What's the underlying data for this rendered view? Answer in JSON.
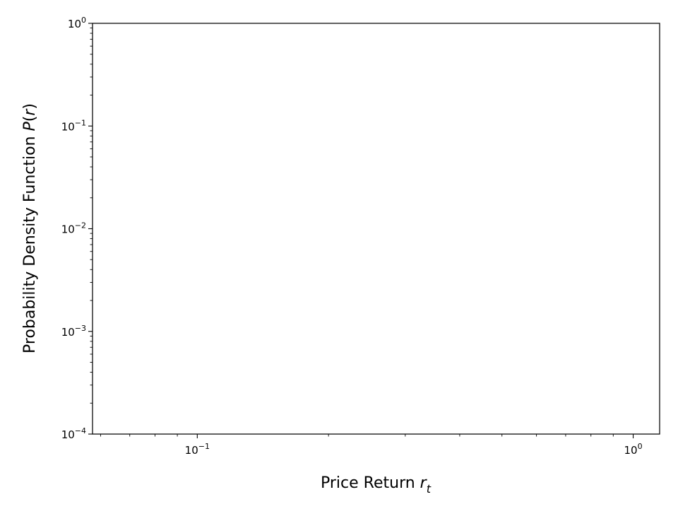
{
  "chart_data": {
    "type": "line",
    "title": "",
    "xscale": "log",
    "yscale": "log",
    "xlim": [
      0.0575,
      1.15
    ],
    "ylim": [
      0.0001,
      1
    ],
    "grid": false,
    "xlabel": {
      "text": "Price Return ",
      "var": "r",
      "sub": "t"
    },
    "ylabel": {
      "text": "Probability Density Function ",
      "var": "P",
      "open": "(",
      "arg": "r",
      "close": ")"
    },
    "x_major_ticks": [
      {
        "value": 0.1,
        "base": "10",
        "exp": "−1"
      },
      {
        "value": 1,
        "base": "10",
        "exp": "0"
      }
    ],
    "y_major_ticks": [
      {
        "value": 0.0001,
        "base": "10",
        "exp": "−4"
      },
      {
        "value": 0.001,
        "base": "10",
        "exp": "−3"
      },
      {
        "value": 0.01,
        "base": "10",
        "exp": "−2"
      },
      {
        "value": 0.1,
        "base": "10",
        "exp": "−1"
      },
      {
        "value": 1,
        "base": "10",
        "exp": "0"
      }
    ],
    "series": []
  }
}
